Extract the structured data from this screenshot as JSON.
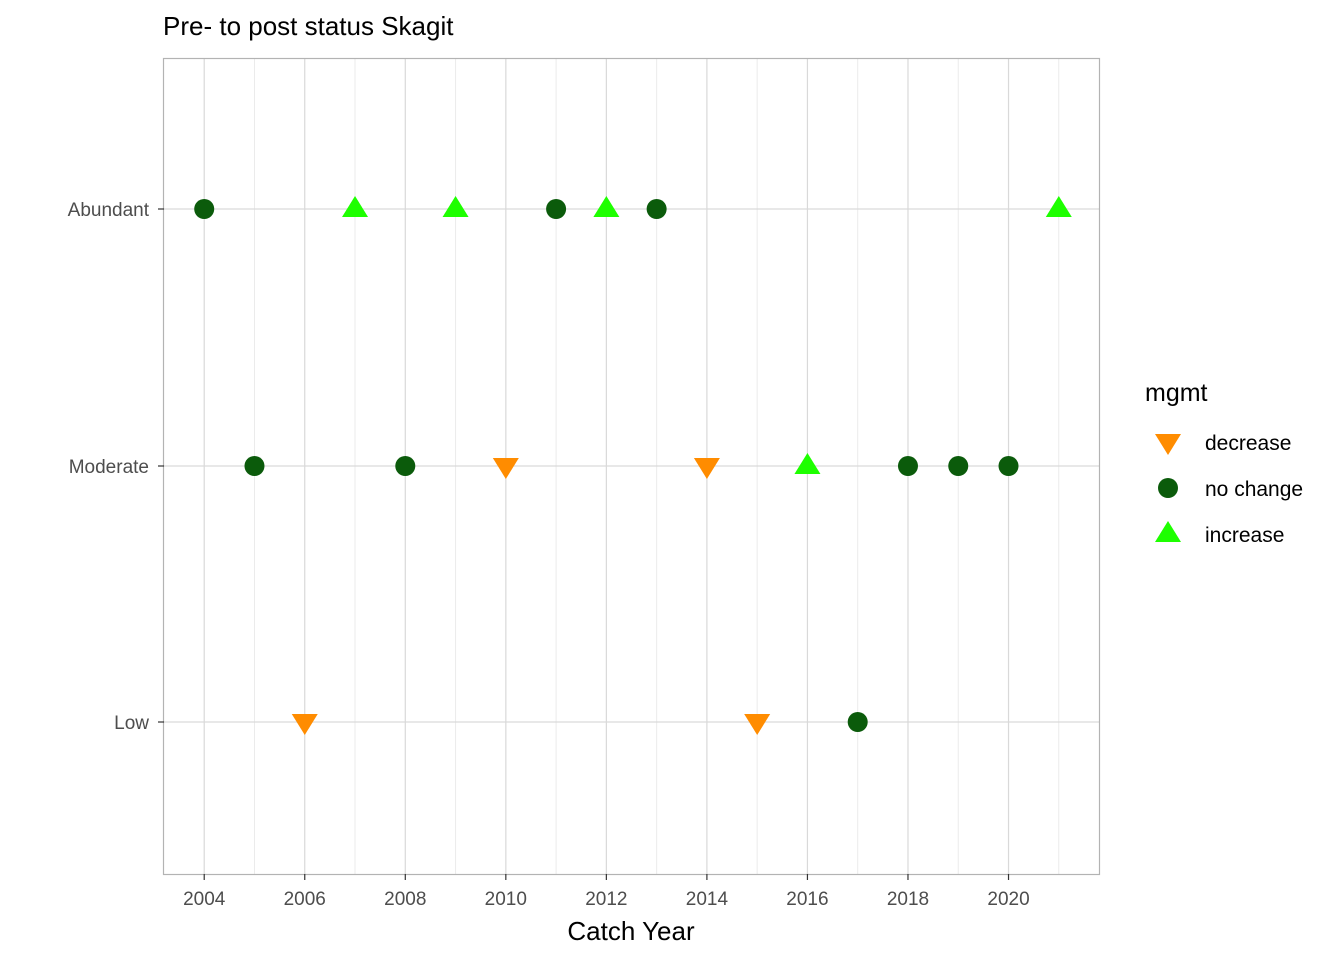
{
  "chart_data": {
    "type": "scatter",
    "title": "Pre- to post status Skagit",
    "xlabel": "Catch Year",
    "ylabel": "",
    "xlim": [
      2003.2,
      2021.8
    ],
    "x_ticks": [
      2004,
      2006,
      2008,
      2010,
      2012,
      2014,
      2016,
      2018,
      2020
    ],
    "y_categories": [
      "Low",
      "Moderate",
      "Abundant"
    ],
    "grid": true,
    "legend": {
      "title": "mgmt",
      "position": "right",
      "entries": [
        {
          "key": "decrease",
          "label": "decrease",
          "shape": "triangle-down",
          "color": "#FF8C00"
        },
        {
          "key": "no_change",
          "label": "no change",
          "shape": "circle",
          "color": "#0B5B0B"
        },
        {
          "key": "increase",
          "label": "increase",
          "shape": "triangle-up",
          "color": "#1EFF00"
        }
      ]
    },
    "points": [
      {
        "x": 2004,
        "y": "Abundant",
        "mgmt": "no_change"
      },
      {
        "x": 2005,
        "y": "Moderate",
        "mgmt": "no_change"
      },
      {
        "x": 2006,
        "y": "Low",
        "mgmt": "decrease"
      },
      {
        "x": 2007,
        "y": "Abundant",
        "mgmt": "increase"
      },
      {
        "x": 2008,
        "y": "Moderate",
        "mgmt": "no_change"
      },
      {
        "x": 2009,
        "y": "Abundant",
        "mgmt": "increase"
      },
      {
        "x": 2010,
        "y": "Moderate",
        "mgmt": "decrease"
      },
      {
        "x": 2011,
        "y": "Abundant",
        "mgmt": "no_change"
      },
      {
        "x": 2012,
        "y": "Abundant",
        "mgmt": "increase"
      },
      {
        "x": 2013,
        "y": "Abundant",
        "mgmt": "no_change"
      },
      {
        "x": 2014,
        "y": "Moderate",
        "mgmt": "decrease"
      },
      {
        "x": 2015,
        "y": "Low",
        "mgmt": "decrease"
      },
      {
        "x": 2016,
        "y": "Moderate",
        "mgmt": "increase"
      },
      {
        "x": 2017,
        "y": "Low",
        "mgmt": "no_change"
      },
      {
        "x": 2018,
        "y": "Moderate",
        "mgmt": "no_change"
      },
      {
        "x": 2019,
        "y": "Moderate",
        "mgmt": "no_change"
      },
      {
        "x": 2020,
        "y": "Moderate",
        "mgmt": "no_change"
      },
      {
        "x": 2021,
        "y": "Abundant",
        "mgmt": "increase"
      }
    ]
  }
}
